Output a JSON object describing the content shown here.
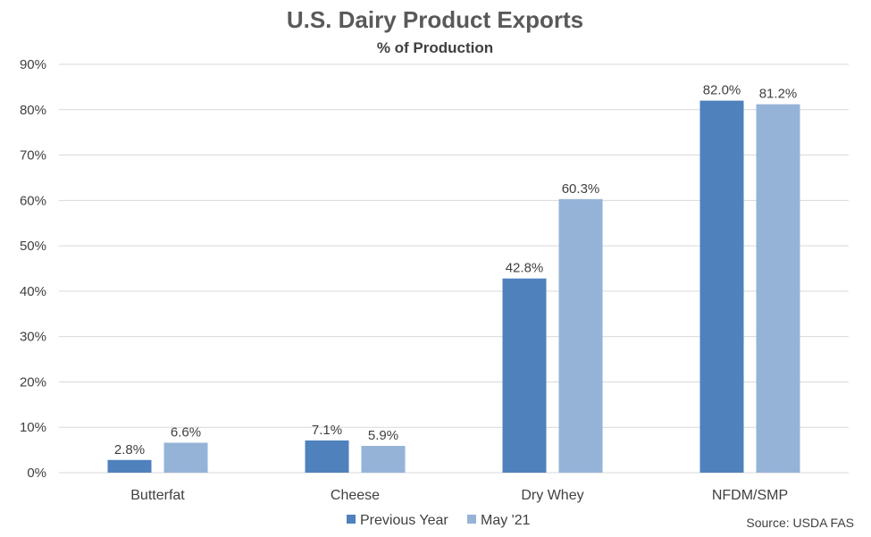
{
  "chart_data": {
    "type": "bar",
    "title": "U.S. Dairy Product Exports",
    "subtitle": "% of Production",
    "categories": [
      "Butterfat",
      "Cheese",
      "Dry Whey",
      "NFDM/SMP"
    ],
    "series": [
      {
        "name": "Previous Year",
        "values": [
          2.8,
          7.1,
          42.8,
          82.0
        ],
        "labels": [
          "2.8%",
          "7.1%",
          "42.8%",
          "82.0%"
        ],
        "color": "#4f81bd"
      },
      {
        "name": "May '21",
        "values": [
          6.6,
          5.9,
          60.3,
          81.2
        ],
        "labels": [
          "6.6%",
          "5.9%",
          "60.3%",
          "81.2%"
        ],
        "color": "#95b3d7"
      }
    ],
    "ylim": [
      0,
      90
    ],
    "yticks": [
      0,
      10,
      20,
      30,
      40,
      50,
      60,
      70,
      80,
      90
    ],
    "ytick_labels": [
      "0%",
      "10%",
      "20%",
      "30%",
      "40%",
      "50%",
      "60%",
      "70%",
      "80%",
      "90%"
    ],
    "grid": true,
    "legend_position": "bottom",
    "source": "Source: USDA FAS"
  }
}
